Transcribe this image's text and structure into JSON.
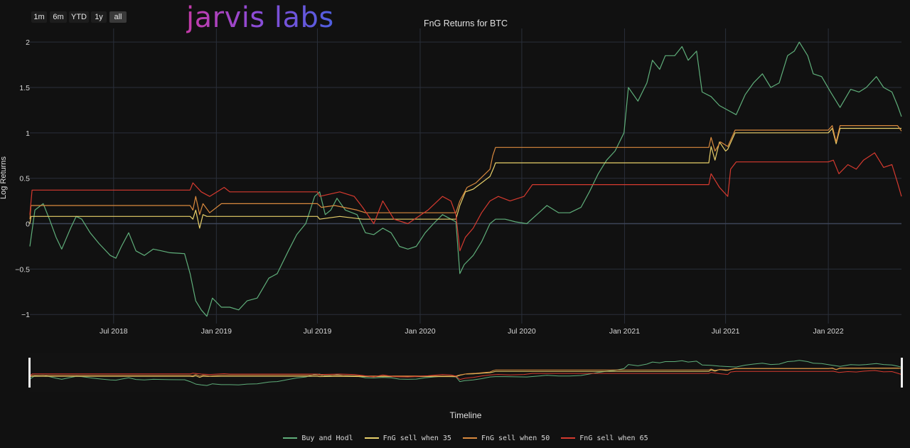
{
  "range_selector": [
    "1m",
    "6m",
    "YTD",
    "1y",
    "all"
  ],
  "range_selected": "all",
  "logo_text": "jarvis labs",
  "colors": {
    "background": "#111111",
    "grid": "#2a2f3a",
    "zero_line": "#3c4458",
    "buy_and_hodl": "#5fae7a",
    "fng_35": "#e8d06a",
    "fng_50": "#d9893e",
    "fng_65": "#d63a2f"
  },
  "chart_data": {
    "type": "line",
    "title": "FnG Returns for BTC",
    "xlabel": "Timeline",
    "ylabel": "Log Returns",
    "x_range": [
      "2018-02-01",
      "2022-05-12"
    ],
    "ylim": [
      -1.1,
      2.15
    ],
    "x_ticks": [
      {
        "date": "2018-07-01",
        "label": "Jul 2018"
      },
      {
        "date": "2019-01-01",
        "label": "Jan 2019"
      },
      {
        "date": "2019-07-01",
        "label": "Jul 2019"
      },
      {
        "date": "2020-01-01",
        "label": "Jan 2020"
      },
      {
        "date": "2020-07-01",
        "label": "Jul 2020"
      },
      {
        "date": "2021-01-01",
        "label": "Jan 2021"
      },
      {
        "date": "2021-07-01",
        "label": "Jul 2021"
      },
      {
        "date": "2022-01-01",
        "label": "Jan 2022"
      }
    ],
    "y_ticks": [
      {
        "value": -1,
        "label": "−1"
      },
      {
        "value": -0.5,
        "label": "−0.5"
      },
      {
        "value": 0,
        "label": "0"
      },
      {
        "value": 0.5,
        "label": "0.5"
      },
      {
        "value": 1,
        "label": "1"
      },
      {
        "value": 1.5,
        "label": "1.5"
      },
      {
        "value": 2,
        "label": "2"
      }
    ],
    "grid": true,
    "legend_position": "bottom",
    "rangeslider": true,
    "series": [
      {
        "name": "Buy and Hodl",
        "color_key": "buy_and_hodl",
        "points": [
          [
            "2018-02-01",
            -0.25
          ],
          [
            "2018-02-10",
            0.15
          ],
          [
            "2018-02-25",
            0.22
          ],
          [
            "2018-03-08",
            0.05
          ],
          [
            "2018-03-20",
            -0.15
          ],
          [
            "2018-03-30",
            -0.28
          ],
          [
            "2018-04-15",
            -0.05
          ],
          [
            "2018-04-25",
            0.08
          ],
          [
            "2018-05-05",
            0.05
          ],
          [
            "2018-05-20",
            -0.1
          ],
          [
            "2018-06-05",
            -0.22
          ],
          [
            "2018-06-25",
            -0.35
          ],
          [
            "2018-07-05",
            -0.38
          ],
          [
            "2018-07-15",
            -0.25
          ],
          [
            "2018-07-28",
            -0.1
          ],
          [
            "2018-08-10",
            -0.3
          ],
          [
            "2018-08-25",
            -0.35
          ],
          [
            "2018-09-10",
            -0.28
          ],
          [
            "2018-09-25",
            -0.3
          ],
          [
            "2018-10-10",
            -0.32
          ],
          [
            "2018-11-05",
            -0.33
          ],
          [
            "2018-11-15",
            -0.55
          ],
          [
            "2018-11-25",
            -0.85
          ],
          [
            "2018-12-05",
            -0.95
          ],
          [
            "2018-12-15",
            -1.02
          ],
          [
            "2018-12-25",
            -0.82
          ],
          [
            "2019-01-10",
            -0.92
          ],
          [
            "2019-01-25",
            -0.92
          ],
          [
            "2019-02-10",
            -0.95
          ],
          [
            "2019-02-25",
            -0.85
          ],
          [
            "2019-03-15",
            -0.82
          ],
          [
            "2019-04-05",
            -0.6
          ],
          [
            "2019-04-20",
            -0.55
          ],
          [
            "2019-05-10",
            -0.3
          ],
          [
            "2019-05-25",
            -0.12
          ],
          [
            "2019-06-10",
            0.0
          ],
          [
            "2019-06-26",
            0.3
          ],
          [
            "2019-07-05",
            0.35
          ],
          [
            "2019-07-15",
            0.1
          ],
          [
            "2019-07-25",
            0.15
          ],
          [
            "2019-08-05",
            0.28
          ],
          [
            "2019-08-20",
            0.15
          ],
          [
            "2019-09-10",
            0.1
          ],
          [
            "2019-09-25",
            -0.1
          ],
          [
            "2019-10-10",
            -0.12
          ],
          [
            "2019-10-26",
            -0.05
          ],
          [
            "2019-11-10",
            -0.1
          ],
          [
            "2019-11-25",
            -0.25
          ],
          [
            "2019-12-10",
            -0.28
          ],
          [
            "2019-12-25",
            -0.25
          ],
          [
            "2020-01-10",
            -0.1
          ],
          [
            "2020-01-25",
            0.0
          ],
          [
            "2020-02-10",
            0.1
          ],
          [
            "2020-02-25",
            0.05
          ],
          [
            "2020-03-05",
            0.02
          ],
          [
            "2020-03-12",
            -0.55
          ],
          [
            "2020-03-20",
            -0.45
          ],
          [
            "2020-04-05",
            -0.35
          ],
          [
            "2020-04-20",
            -0.2
          ],
          [
            "2020-05-05",
            0.0
          ],
          [
            "2020-05-15",
            0.05
          ],
          [
            "2020-06-01",
            0.05
          ],
          [
            "2020-06-20",
            0.02
          ],
          [
            "2020-07-10",
            0.0
          ],
          [
            "2020-07-28",
            0.1
          ],
          [
            "2020-08-15",
            0.2
          ],
          [
            "2020-09-05",
            0.12
          ],
          [
            "2020-09-25",
            0.12
          ],
          [
            "2020-10-15",
            0.18
          ],
          [
            "2020-10-30",
            0.35
          ],
          [
            "2020-11-15",
            0.55
          ],
          [
            "2020-11-30",
            0.7
          ],
          [
            "2020-12-15",
            0.8
          ],
          [
            "2020-12-31",
            1.0
          ],
          [
            "2021-01-08",
            1.5
          ],
          [
            "2021-01-25",
            1.35
          ],
          [
            "2021-02-10",
            1.55
          ],
          [
            "2021-02-20",
            1.8
          ],
          [
            "2021-03-05",
            1.7
          ],
          [
            "2021-03-15",
            1.85
          ],
          [
            "2021-04-01",
            1.85
          ],
          [
            "2021-04-14",
            1.95
          ],
          [
            "2021-04-25",
            1.8
          ],
          [
            "2021-05-10",
            1.9
          ],
          [
            "2021-05-20",
            1.45
          ],
          [
            "2021-06-05",
            1.4
          ],
          [
            "2021-06-20",
            1.3
          ],
          [
            "2021-07-05",
            1.25
          ],
          [
            "2021-07-20",
            1.2
          ],
          [
            "2021-08-05",
            1.42
          ],
          [
            "2021-08-20",
            1.55
          ],
          [
            "2021-09-05",
            1.65
          ],
          [
            "2021-09-20",
            1.5
          ],
          [
            "2021-10-05",
            1.55
          ],
          [
            "2021-10-20",
            1.85
          ],
          [
            "2021-11-01",
            1.9
          ],
          [
            "2021-11-10",
            2.0
          ],
          [
            "2021-11-25",
            1.85
          ],
          [
            "2021-12-05",
            1.65
          ],
          [
            "2021-12-20",
            1.62
          ],
          [
            "2022-01-05",
            1.45
          ],
          [
            "2022-01-22",
            1.28
          ],
          [
            "2022-02-10",
            1.48
          ],
          [
            "2022-02-25",
            1.45
          ],
          [
            "2022-03-10",
            1.5
          ],
          [
            "2022-03-28",
            1.62
          ],
          [
            "2022-04-10",
            1.5
          ],
          [
            "2022-04-25",
            1.45
          ],
          [
            "2022-05-05",
            1.3
          ],
          [
            "2022-05-12",
            1.18
          ]
        ]
      },
      {
        "name": "FnG sell when 35",
        "color_key": "fng_35",
        "points": [
          [
            "2018-02-01",
            0.0
          ],
          [
            "2018-02-03",
            0.08
          ],
          [
            "2018-11-15",
            0.08
          ],
          [
            "2018-11-20",
            0.05
          ],
          [
            "2018-11-25",
            0.15
          ],
          [
            "2018-12-02",
            -0.05
          ],
          [
            "2018-12-08",
            0.1
          ],
          [
            "2018-12-15",
            0.08
          ],
          [
            "2019-07-01",
            0.08
          ],
          [
            "2019-07-05",
            0.05
          ],
          [
            "2019-08-10",
            0.08
          ],
          [
            "2019-09-20",
            0.05
          ],
          [
            "2019-10-05",
            0.05
          ],
          [
            "2020-03-05",
            0.05
          ],
          [
            "2020-03-12",
            0.2
          ],
          [
            "2020-03-22",
            0.35
          ],
          [
            "2020-04-05",
            0.38
          ],
          [
            "2020-04-20",
            0.45
          ],
          [
            "2020-05-05",
            0.52
          ],
          [
            "2020-05-12",
            0.62
          ],
          [
            "2020-05-15",
            0.67
          ],
          [
            "2021-06-01",
            0.67
          ],
          [
            "2021-06-05",
            0.85
          ],
          [
            "2021-06-12",
            0.7
          ],
          [
            "2021-06-20",
            0.9
          ],
          [
            "2021-07-01",
            0.8
          ],
          [
            "2021-07-05",
            0.82
          ],
          [
            "2021-07-18",
            1.0
          ],
          [
            "2022-01-01",
            1.0
          ],
          [
            "2022-01-08",
            1.05
          ],
          [
            "2022-01-15",
            0.88
          ],
          [
            "2022-01-22",
            1.05
          ],
          [
            "2022-05-05",
            1.05
          ],
          [
            "2022-05-12",
            1.05
          ]
        ]
      },
      {
        "name": "FnG sell when 50",
        "color_key": "fng_50",
        "points": [
          [
            "2018-02-01",
            0.05
          ],
          [
            "2018-02-03",
            0.2
          ],
          [
            "2018-11-15",
            0.2
          ],
          [
            "2018-11-20",
            0.15
          ],
          [
            "2018-11-25",
            0.3
          ],
          [
            "2018-12-02",
            0.1
          ],
          [
            "2018-12-08",
            0.22
          ],
          [
            "2018-12-20",
            0.12
          ],
          [
            "2019-01-10",
            0.22
          ],
          [
            "2019-07-01",
            0.22
          ],
          [
            "2019-07-08",
            0.18
          ],
          [
            "2019-08-01",
            0.2
          ],
          [
            "2019-09-10",
            0.15
          ],
          [
            "2019-09-25",
            0.12
          ],
          [
            "2020-03-05",
            0.12
          ],
          [
            "2020-03-12",
            0.25
          ],
          [
            "2020-03-25",
            0.4
          ],
          [
            "2020-04-10",
            0.45
          ],
          [
            "2020-05-05",
            0.6
          ],
          [
            "2020-05-10",
            0.75
          ],
          [
            "2020-05-15",
            0.84
          ],
          [
            "2021-06-01",
            0.84
          ],
          [
            "2021-06-05",
            0.95
          ],
          [
            "2021-06-12",
            0.8
          ],
          [
            "2021-06-22",
            0.9
          ],
          [
            "2021-07-05",
            0.85
          ],
          [
            "2021-07-18",
            1.03
          ],
          [
            "2022-01-01",
            1.03
          ],
          [
            "2022-01-08",
            1.08
          ],
          [
            "2022-01-15",
            0.9
          ],
          [
            "2022-01-22",
            1.08
          ],
          [
            "2022-05-05",
            1.08
          ],
          [
            "2022-05-12",
            1.02
          ]
        ]
      },
      {
        "name": "FnG sell when 65",
        "color_key": "fng_65",
        "points": [
          [
            "2018-02-01",
            0.1
          ],
          [
            "2018-02-05",
            0.37
          ],
          [
            "2018-11-15",
            0.37
          ],
          [
            "2018-11-20",
            0.45
          ],
          [
            "2018-12-05",
            0.35
          ],
          [
            "2018-12-20",
            0.3
          ],
          [
            "2019-01-15",
            0.4
          ],
          [
            "2019-01-25",
            0.35
          ],
          [
            "2019-07-01",
            0.35
          ],
          [
            "2019-07-05",
            0.3
          ],
          [
            "2019-08-10",
            0.35
          ],
          [
            "2019-09-05",
            0.3
          ],
          [
            "2019-09-20",
            0.18
          ],
          [
            "2019-10-10",
            0.0
          ],
          [
            "2019-10-26",
            0.25
          ],
          [
            "2019-11-15",
            0.05
          ],
          [
            "2019-12-10",
            0.0
          ],
          [
            "2020-01-15",
            0.15
          ],
          [
            "2020-02-10",
            0.3
          ],
          [
            "2020-02-25",
            0.25
          ],
          [
            "2020-03-05",
            0.1
          ],
          [
            "2020-03-12",
            -0.3
          ],
          [
            "2020-03-22",
            -0.15
          ],
          [
            "2020-04-05",
            -0.05
          ],
          [
            "2020-04-20",
            0.12
          ],
          [
            "2020-05-05",
            0.25
          ],
          [
            "2020-05-20",
            0.3
          ],
          [
            "2020-06-10",
            0.25
          ],
          [
            "2020-07-05",
            0.3
          ],
          [
            "2020-07-20",
            0.43
          ],
          [
            "2021-06-01",
            0.43
          ],
          [
            "2021-06-05",
            0.55
          ],
          [
            "2021-06-20",
            0.4
          ],
          [
            "2021-07-05",
            0.3
          ],
          [
            "2021-07-10",
            0.6
          ],
          [
            "2021-07-20",
            0.68
          ],
          [
            "2022-01-01",
            0.68
          ],
          [
            "2022-01-10",
            0.7
          ],
          [
            "2022-01-20",
            0.55
          ],
          [
            "2022-02-05",
            0.65
          ],
          [
            "2022-02-20",
            0.6
          ],
          [
            "2022-03-05",
            0.7
          ],
          [
            "2022-03-25",
            0.78
          ],
          [
            "2022-04-10",
            0.62
          ],
          [
            "2022-04-25",
            0.65
          ],
          [
            "2022-05-05",
            0.45
          ],
          [
            "2022-05-12",
            0.3
          ]
        ]
      }
    ]
  }
}
